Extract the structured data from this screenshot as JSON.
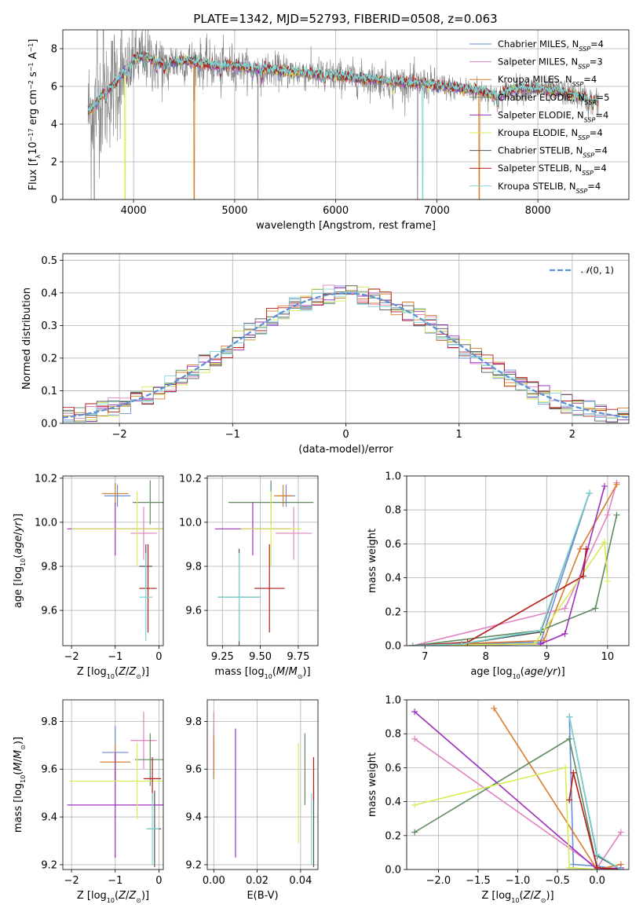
{
  "figure": {
    "title": "PLATE=1342, MJD=52793, FIBERID=0508, z=0.063",
    "colors": {
      "Chabrier MILES": "#6a8ed6",
      "Salpeter MILES": "#e083c0",
      "Kroupa MILES": "#d87f2c",
      "Chabrier ELODIE": "#5e8a5e",
      "Salpeter ELODIE": "#9d2fbf",
      "Kroupa ELODIE": "#d6ec55",
      "Chabrier STELIB": "#555555",
      "Salpeter STELIB": "#b31b1b",
      "Kroupa STELIB": "#7ed6d6",
      "data": "#808080",
      "normal_curve": "#5b8fd6"
    }
  },
  "chart_data": [
    {
      "id": "spectrum",
      "type": "line",
      "xlabel": "wavelength [Angstrom, rest frame]",
      "xlim": [
        3300,
        8900
      ],
      "ylim": [
        0,
        9
      ],
      "xticks": [
        4000,
        5000,
        6000,
        7000,
        8000
      ],
      "yticks": [
        0,
        2,
        4,
        6,
        8
      ],
      "continuum": {
        "x": [
          3550,
          3600,
          3700,
          3800,
          3900,
          4000,
          4100,
          4200,
          4300,
          4400,
          4500,
          4600,
          4700,
          4800,
          5000,
          5200,
          5400,
          5600,
          5800,
          6000,
          6200,
          6400,
          6600,
          6800,
          7000,
          7200,
          7400,
          7600,
          7800,
          8000,
          8200,
          8400,
          8600
        ],
        "y": [
          4.6,
          4.9,
          5.6,
          6.1,
          6.7,
          7.4,
          7.6,
          7.4,
          7.2,
          7.3,
          7.35,
          7.3,
          7.2,
          7.1,
          7.05,
          6.95,
          6.85,
          6.75,
          6.65,
          6.55,
          6.45,
          6.35,
          6.25,
          6.15,
          6.05,
          5.9,
          5.8,
          5.5,
          5.9,
          5.85,
          5.75,
          5.5,
          5.2
        ]
      },
      "legend": [
        {
          "name": "Chabrier MILES, N",
          "sub": "SSP",
          "suffix": "=4"
        },
        {
          "name": "Salpeter MILES, N",
          "sub": "SSP",
          "suffix": "=3"
        },
        {
          "name": "Kroupa MILES, N",
          "sub": "SSP",
          "suffix": "=4"
        },
        {
          "name": "Chabrier ELODIE, N",
          "sub": "SSP",
          "suffix": "=5"
        },
        {
          "name": "Salpeter ELODIE, N",
          "sub": "SSP",
          "suffix": "=4"
        },
        {
          "name": "Kroupa ELODIE, N",
          "sub": "SSP",
          "suffix": "=4"
        },
        {
          "name": "Chabrier STELIB, N",
          "sub": "SSP",
          "suffix": "=4"
        },
        {
          "name": "Salpeter STELIB, N",
          "sub": "SSP",
          "suffix": "=4"
        },
        {
          "name": "Kroupa STELIB, N",
          "sub": "SSP",
          "suffix": "=4"
        }
      ]
    },
    {
      "id": "residuals",
      "type": "line",
      "xlabel": "(data-model)/error",
      "ylabel": "Normed distribution",
      "xlim": [
        -2.5,
        2.5
      ],
      "ylim": [
        0,
        0.52
      ],
      "xticks": [
        -2,
        -1,
        0,
        1,
        2
      ],
      "yticks": [
        0.0,
        0.1,
        0.2,
        0.3,
        0.4,
        0.5
      ],
      "legend": "N(0,1)",
      "bin_width": 0.1
    },
    {
      "id": "age-vs-Z",
      "type": "scatter",
      "xlabel": "Z [log10(Z/Zsun)]",
      "ylabel": "age [log10(age/yr)]",
      "xlim": [
        -2.2,
        0.1
      ],
      "ylim": [
        9.44,
        10.21
      ],
      "xticks": [
        -2,
        -1,
        0
      ],
      "yticks": [
        9.6,
        9.8,
        10.0,
        10.2
      ],
      "points": [
        {
          "model": "Chabrier MILES",
          "x": -0.95,
          "xerr": 0.3,
          "y": 10.12,
          "yerr": 0.05
        },
        {
          "model": "Salpeter MILES",
          "x": -0.35,
          "xerr": 0.3,
          "y": 9.95,
          "yerr": 0.12
        },
        {
          "model": "Kroupa MILES",
          "x": -1.0,
          "xerr": 0.3,
          "y": 10.13,
          "yerr": 0.05
        },
        {
          "model": "Chabrier ELODIE",
          "x": -0.2,
          "xerr": 0.4,
          "y": 10.09,
          "yerr": 0.1
        },
        {
          "model": "Salpeter ELODIE",
          "x": -1.0,
          "xerr": 1.1,
          "y": 9.97,
          "yerr": 0.12
        },
        {
          "model": "Kroupa ELODIE",
          "x": -0.5,
          "xerr": 1.5,
          "y": 9.97,
          "yerr": 0.17
        },
        {
          "model": "Chabrier STELIB",
          "x": -0.3,
          "xerr": 0.15,
          "y": 9.8,
          "yerr": 0.1
        },
        {
          "model": "Salpeter STELIB",
          "x": -0.25,
          "xerr": 0.2,
          "y": 9.7,
          "yerr": 0.2
        },
        {
          "model": "Kroupa STELIB",
          "x": -0.3,
          "xerr": 0.15,
          "y": 9.66,
          "yerr": 0.2
        }
      ]
    },
    {
      "id": "age-vs-mass",
      "type": "scatter",
      "xlabel": "mass [log10(M/Msun)]",
      "xlim": [
        9.15,
        9.88
      ],
      "ylim": [
        9.44,
        10.21
      ],
      "xticks": [
        9.25,
        9.5,
        9.75
      ],
      "yticks": [
        9.6,
        9.8,
        10.0,
        10.2
      ],
      "points": [
        {
          "model": "Chabrier MILES",
          "x": 9.67,
          "xerr": 0.06,
          "y": 10.12,
          "yerr": 0.05
        },
        {
          "model": "Salpeter MILES",
          "x": 9.72,
          "xerr": 0.12,
          "y": 9.95,
          "yerr": 0.12
        },
        {
          "model": "Kroupa MILES",
          "x": 9.65,
          "xerr": 0.06,
          "y": 10.12,
          "yerr": 0.05
        },
        {
          "model": "Chabrier ELODIE",
          "x": 9.57,
          "xerr": 0.28,
          "y": 10.09,
          "yerr": 0.1
        },
        {
          "model": "Salpeter ELODIE",
          "x": 9.45,
          "xerr": 0.25,
          "y": 9.97,
          "yerr": 0.12
        },
        {
          "model": "Kroupa ELODIE",
          "x": 9.57,
          "xerr": 0.2,
          "y": 9.97,
          "yerr": 0.17
        },
        {
          "model": "Chabrier STELIB",
          "x": 9.36,
          "xerr": 0.14,
          "y": 9.66,
          "yerr": 0.22
        },
        {
          "model": "Salpeter STELIB",
          "x": 9.56,
          "xerr": 0.1,
          "y": 9.7,
          "yerr": 0.2
        },
        {
          "model": "Kroupa STELIB",
          "x": 9.36,
          "xerr": 0.14,
          "y": 9.66,
          "yerr": 0.2
        }
      ]
    },
    {
      "id": "weight-vs-age",
      "type": "line",
      "xlabel": "age [log10(age/yr)]",
      "ylabel": "mass weight",
      "xlim": [
        6.7,
        10.35
      ],
      "ylim": [
        0,
        1
      ],
      "xticks": [
        7,
        8,
        9,
        10
      ],
      "yticks": [
        0.0,
        0.2,
        0.4,
        0.6,
        0.8,
        1.0
      ],
      "series": [
        {
          "model": "Chabrier MILES",
          "x": [
            6.8,
            7.6,
            8.9,
            9.7
          ],
          "y": [
            0.0,
            0.01,
            0.02,
            0.9
          ]
        },
        {
          "model": "Salpeter MILES",
          "x": [
            6.8,
            9.3,
            10.0,
            10.15
          ],
          "y": [
            0.0,
            0.22,
            0.77,
            0.96
          ]
        },
        {
          "model": "Kroupa MILES",
          "x": [
            6.8,
            8.95,
            9.55,
            10.15
          ],
          "y": [
            0.0,
            0.03,
            0.57,
            0.95
          ]
        },
        {
          "model": "Chabrier ELODIE",
          "x": [
            6.8,
            8.9,
            9.8,
            10.15
          ],
          "y": [
            0.0,
            0.09,
            0.22,
            0.77
          ]
        },
        {
          "model": "Salpeter ELODIE",
          "x": [
            6.8,
            8.9,
            9.3,
            9.95
          ],
          "y": [
            0.0,
            0.01,
            0.07,
            0.94
          ]
        },
        {
          "model": "Kroupa ELODIE",
          "x": [
            6.8,
            8.8,
            9.95,
            10.0
          ],
          "y": [
            0.0,
            0.01,
            0.61,
            0.38
          ]
        },
        {
          "model": "Chabrier STELIB",
          "x": [
            6.8,
            7.6,
            8.9,
            9.7
          ],
          "y": [
            0.0,
            0.01,
            0.08,
            0.9
          ]
        },
        {
          "model": "Salpeter STELIB",
          "x": [
            6.8,
            7.7,
            9.6,
            9.65
          ],
          "y": [
            0.0,
            0.02,
            0.41,
            0.57
          ]
        },
        {
          "model": "Kroupa STELIB",
          "x": [
            6.8,
            7.6,
            8.9,
            9.7
          ],
          "y": [
            0.0,
            0.01,
            0.09,
            0.9
          ]
        }
      ]
    },
    {
      "id": "mass-vs-Z",
      "type": "scatter",
      "xlabel": "Z [log10(Z/Zsun)]",
      "ylabel": "mass [log10(M/Msun)]",
      "xlim": [
        -2.2,
        0.1
      ],
      "ylim": [
        9.18,
        9.89
      ],
      "xticks": [
        -2,
        -1,
        0
      ],
      "yticks": [
        9.2,
        9.4,
        9.6,
        9.8
      ],
      "points": [
        {
          "model": "Chabrier MILES",
          "x": -1.0,
          "xerr": 0.3,
          "y": 9.67,
          "yerr": 0.11
        },
        {
          "model": "Salpeter MILES",
          "x": -0.35,
          "xerr": 0.3,
          "y": 9.72,
          "yerr": 0.12
        },
        {
          "model": "Kroupa MILES",
          "x": -1.0,
          "xerr": 0.35,
          "y": 9.63,
          "yerr": 0.08
        },
        {
          "model": "Chabrier ELODIE",
          "x": -0.2,
          "xerr": 0.35,
          "y": 9.64,
          "yerr": 0.11
        },
        {
          "model": "Salpeter ELODIE",
          "x": -1.0,
          "xerr": 1.1,
          "y": 9.45,
          "yerr": 0.22
        },
        {
          "model": "Kroupa ELODIE",
          "x": -0.5,
          "xerr": 1.55,
          "y": 9.55,
          "yerr": 0.16
        },
        {
          "model": "Chabrier STELIB",
          "x": -0.1,
          "xerr": 0.15,
          "y": 9.35,
          "yerr": 0.16
        },
        {
          "model": "Salpeter STELIB",
          "x": -0.15,
          "xerr": 0.2,
          "y": 9.56,
          "yerr": 0.09
        },
        {
          "model": "Kroupa STELIB",
          "x": -0.15,
          "xerr": 0.15,
          "y": 9.35,
          "yerr": 0.15
        }
      ]
    },
    {
      "id": "mass-vs-ebv",
      "type": "scatter",
      "xlabel": "E(B-V)",
      "xlim": [
        -0.003,
        0.048
      ],
      "ylim": [
        9.18,
        9.89
      ],
      "xticks": [
        0.0,
        0.02,
        0.04
      ],
      "yticks": [
        9.2,
        9.4,
        9.6,
        9.8
      ],
      "points": [
        {
          "model": "Chabrier MILES",
          "x": 0.0,
          "xerr": 0,
          "y": 9.67,
          "yerr": 0.11
        },
        {
          "model": "Salpeter MILES",
          "x": 0.0,
          "xerr": 0,
          "y": 9.72,
          "yerr": 0.12
        },
        {
          "model": "Kroupa MILES",
          "x": 0.0,
          "xerr": 0,
          "y": 9.65,
          "yerr": 0.09
        },
        {
          "model": "Chabrier ELODIE",
          "x": 0.042,
          "xerr": 0,
          "y": 9.6,
          "yerr": 0.15
        },
        {
          "model": "Salpeter ELODIE",
          "x": 0.01,
          "xerr": 0,
          "y": 9.5,
          "yerr": 0.27
        },
        {
          "model": "Kroupa ELODIE",
          "x": 0.039,
          "xerr": 0,
          "y": 9.5,
          "yerr": 0.21
        },
        {
          "model": "Chabrier STELIB",
          "x": 0.046,
          "xerr": 0,
          "y": 9.35,
          "yerr": 0.16
        },
        {
          "model": "Salpeter STELIB",
          "x": 0.046,
          "xerr": 0,
          "y": 9.56,
          "yerr": 0.09
        },
        {
          "model": "Kroupa STELIB",
          "x": 0.045,
          "xerr": 0,
          "y": 9.35,
          "yerr": 0.15
        }
      ]
    },
    {
      "id": "weight-vs-Z",
      "type": "line",
      "xlabel": "Z [log10(Z/Zsun)]",
      "ylabel": "mass weight",
      "xlim": [
        -2.4,
        0.4
      ],
      "ylim": [
        0,
        1
      ],
      "xticks": [
        -2.0,
        -1.5,
        -1.0,
        -0.5,
        0.0
      ],
      "yticks": [
        0.0,
        0.2,
        0.4,
        0.6,
        0.8,
        1.0
      ],
      "series": [
        {
          "model": "Chabrier MILES",
          "x": [
            -0.35,
            -0.3,
            0.0,
            0.3
          ],
          "y": [
            0.9,
            0.03,
            0.02,
            0.0
          ]
        },
        {
          "model": "Salpeter MILES",
          "x": [
            -2.3,
            0.0,
            0.3
          ],
          "y": [
            0.77,
            0.01,
            0.22
          ]
        },
        {
          "model": "Kroupa MILES",
          "x": [
            -1.3,
            0.0,
            0.3
          ],
          "y": [
            0.95,
            0.0,
            0.03
          ]
        },
        {
          "model": "Chabrier ELODIE",
          "x": [
            -2.3,
            -0.35,
            0.0
          ],
          "y": [
            0.22,
            0.77,
            0.01
          ]
        },
        {
          "model": "Salpeter ELODIE",
          "x": [
            -2.3,
            0.0,
            0.3
          ],
          "y": [
            0.93,
            0.0,
            0.01
          ]
        },
        {
          "model": "Kroupa ELODIE",
          "x": [
            -2.3,
            -0.4,
            -0.35,
            0.0
          ],
          "y": [
            0.38,
            0.6,
            0.01,
            0.0
          ]
        },
        {
          "model": "Chabrier STELIB",
          "x": [
            -0.35,
            0.0,
            0.3
          ],
          "y": [
            0.9,
            0.08,
            0.0
          ]
        },
        {
          "model": "Salpeter STELIB",
          "x": [
            -0.35,
            -0.3,
            0.0,
            0.3
          ],
          "y": [
            0.41,
            0.57,
            0.01,
            0.0
          ]
        },
        {
          "model": "Kroupa STELIB",
          "x": [
            -0.35,
            0.0,
            0.3
          ],
          "y": [
            0.9,
            0.09,
            0.0
          ]
        }
      ]
    }
  ]
}
